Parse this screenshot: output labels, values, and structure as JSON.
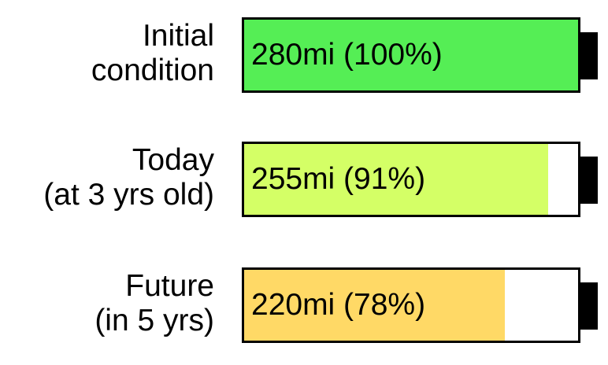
{
  "batteries": [
    {
      "label_lines": [
        "Initial",
        "condition"
      ],
      "value_text": "280mi (100%)",
      "range_mi": 280,
      "percent": 100,
      "fill_color": "#55ee55"
    },
    {
      "label_lines": [
        "Today",
        "(at 3 yrs old)"
      ],
      "value_text": "255mi (91%)",
      "range_mi": 255,
      "percent": 91,
      "fill_color": "#d4ff66"
    },
    {
      "label_lines": [
        "Future",
        "(in 5 yrs)"
      ],
      "value_text": "220mi (78%)",
      "range_mi": 220,
      "percent": 78,
      "fill_color": "#ffd966"
    }
  ]
}
